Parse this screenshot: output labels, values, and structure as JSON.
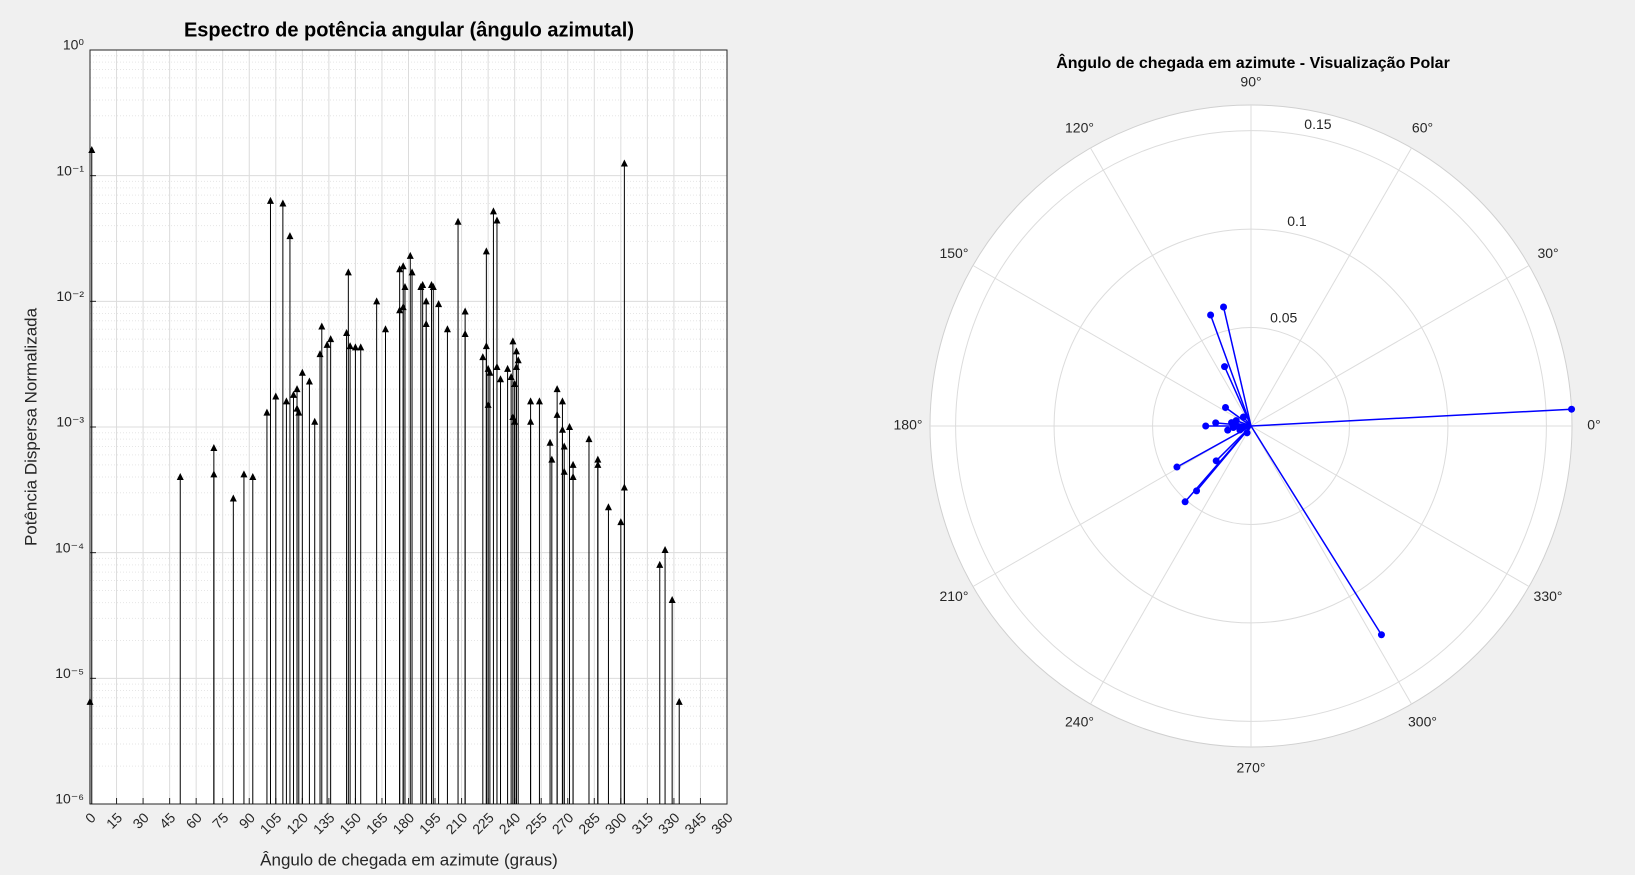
{
  "chart_data": [
    {
      "type": "stem",
      "title": "Espectro de potência angular (ângulo azimutal)",
      "xlabel": "Ângulo de chegada em azimute (graus)",
      "ylabel": "Potência Dispersa Normalizada",
      "x": [
        0,
        1,
        51,
        70,
        70,
        81,
        87,
        92,
        100,
        102,
        105,
        109,
        111,
        113,
        115,
        117,
        117,
        118,
        120,
        124,
        127,
        130,
        131,
        134,
        136,
        145,
        146,
        147,
        150,
        153,
        162,
        167,
        175,
        175,
        177,
        177,
        178,
        181,
        182,
        187,
        188,
        190,
        190,
        193,
        194,
        197,
        202,
        208,
        212,
        212,
        222,
        224,
        224,
        225,
        225,
        226,
        228,
        230,
        230,
        232,
        236,
        238,
        239,
        239,
        240,
        240,
        241,
        241,
        242,
        249,
        249,
        254,
        260,
        261,
        264,
        264,
        267,
        267,
        268,
        268,
        271,
        273,
        273,
        282,
        287,
        287,
        293,
        300,
        302,
        302,
        322,
        325,
        329,
        333
      ],
      "values": [
        6.5e-06,
        0.16,
        0.0004,
        0.00068,
        0.00042,
        0.00027,
        0.00042,
        0.0004,
        0.0013,
        0.063,
        0.00175,
        0.06,
        0.0016,
        0.033,
        0.0018,
        0.002,
        0.0014,
        0.0013,
        0.0027,
        0.0023,
        0.0011,
        0.0038,
        0.0063,
        0.0045,
        0.005,
        0.0056,
        0.017,
        0.0044,
        0.0043,
        0.0043,
        0.01,
        0.006,
        0.018,
        0.0085,
        0.019,
        0.009,
        0.013,
        0.023,
        0.017,
        0.013,
        0.0135,
        0.01,
        0.0066,
        0.0135,
        0.013,
        0.0095,
        0.006,
        0.043,
        0.0083,
        0.0055,
        0.0036,
        0.025,
        0.0044,
        0.0029,
        0.0015,
        0.0027,
        0.052,
        0.044,
        0.003,
        0.0024,
        0.0029,
        0.0025,
        0.0048,
        0.0012,
        0.0011,
        0.0022,
        0.003,
        0.004,
        0.0034,
        0.0016,
        0.0011,
        0.0016,
        0.00075,
        0.00055,
        0.002,
        0.00125,
        0.0016,
        0.00095,
        0.0007,
        0.00044,
        0.001,
        0.0005,
        0.0004,
        0.0008,
        0.00055,
        0.0005,
        0.00023,
        0.000175,
        0.125,
        0.00033,
        8e-05,
        0.000105,
        4.2e-05,
        6.5e-06
      ],
      "color": "#000000",
      "xlim": [
        0,
        360
      ],
      "ylim": [
        1e-06,
        1
      ],
      "xticks": [
        0,
        15,
        30,
        45,
        60,
        75,
        90,
        105,
        120,
        135,
        150,
        165,
        180,
        195,
        210,
        225,
        240,
        255,
        270,
        285,
        300,
        315,
        330,
        345,
        360
      ],
      "yticks": [
        {
          "value": 1e-06,
          "label": "10⁻⁶"
        },
        {
          "value": 1e-05,
          "label": "10⁻⁵"
        },
        {
          "value": 0.0001,
          "label": "10⁻⁴"
        },
        {
          "value": 0.001,
          "label": "10⁻³"
        },
        {
          "value": 0.01,
          "label": "10⁻²"
        },
        {
          "value": 0.1,
          "label": "10⁻¹"
        },
        {
          "value": 1,
          "label": "10⁰"
        }
      ],
      "yscale": "log",
      "grid": true
    },
    {
      "type": "polar",
      "title": "Ângulo de chegada em azimute - Visualização Polar",
      "theta": [
        3,
        302,
        103,
        110,
        114,
        209,
        229,
        230,
        225,
        144,
        180,
        175,
        170,
        190,
        200,
        160,
        240,
        130,
        185,
        195
      ],
      "r": [
        0.163,
        0.125,
        0.062,
        0.06,
        0.033,
        0.043,
        0.051,
        0.043,
        0.025,
        0.016,
        0.023,
        0.018,
        0.01,
        0.012,
        0.006,
        0.008,
        0.004,
        0.006,
        0.009,
        0.005
      ],
      "color": "#0000ff",
      "rlim": [
        0,
        0.163
      ],
      "rticks": [
        0.05,
        0.1,
        0.15
      ],
      "thetaticks": [
        {
          "value": 0,
          "label": "0°"
        },
        {
          "value": 30,
          "label": "30°"
        },
        {
          "value": 60,
          "label": "60°"
        },
        {
          "value": 90,
          "label": "90°"
        },
        {
          "value": 120,
          "label": "120°"
        },
        {
          "value": 150,
          "label": "150°"
        },
        {
          "value": 180,
          "label": "180°"
        },
        {
          "value": 210,
          "label": "210°"
        },
        {
          "value": 240,
          "label": "240°"
        },
        {
          "value": 270,
          "label": "270°"
        },
        {
          "value": 300,
          "label": "300°"
        },
        {
          "value": 330,
          "label": "330°"
        }
      ]
    }
  ]
}
